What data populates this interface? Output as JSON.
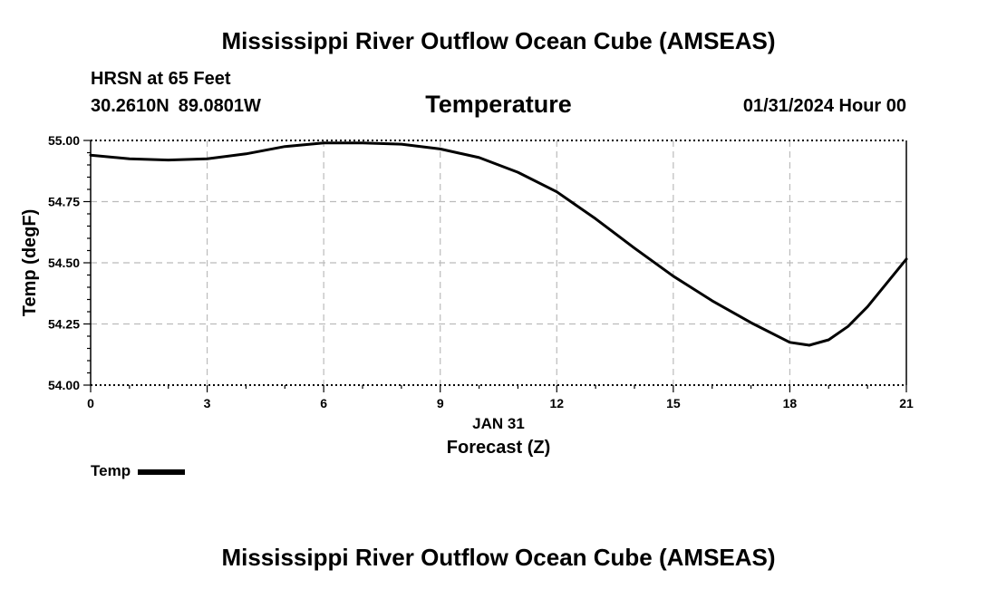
{
  "header": {
    "title": "Mississippi River Outflow Ocean Cube (AMSEAS)",
    "station": "HRSN at 65 Feet",
    "lat": "30.2610N",
    "lon": "89.0801W",
    "panel_title": "Temperature",
    "datetime": "01/31/2024 Hour 00"
  },
  "footer": {
    "title": "Mississippi River Outflow Ocean Cube (AMSEAS)"
  },
  "chart_data": {
    "type": "line",
    "title": "Temperature",
    "xlabel": "Forecast (Z)",
    "date_label": "JAN 31",
    "ylabel": "Temp (degF)",
    "xlim": [
      0,
      21
    ],
    "ylim": [
      54.0,
      55.0
    ],
    "x_ticks": [
      0,
      3,
      6,
      9,
      12,
      15,
      18,
      21
    ],
    "y_ticks": [
      "54.00",
      "54.25",
      "54.50",
      "54.75",
      "55.00"
    ],
    "grid": true,
    "legend_position": "bottom-left",
    "series": [
      {
        "name": "Temp",
        "color": "#000000",
        "x": [
          0,
          1,
          2,
          3,
          4,
          5,
          6,
          7,
          8,
          9,
          10,
          11,
          12,
          13,
          14,
          15,
          16,
          17,
          18,
          18.5,
          19,
          19.5,
          20,
          21
        ],
        "y": [
          54.94,
          54.925,
          54.92,
          54.925,
          54.945,
          54.975,
          54.99,
          54.99,
          54.985,
          54.965,
          54.93,
          54.87,
          54.79,
          54.68,
          54.56,
          54.445,
          54.345,
          54.255,
          54.175,
          54.163,
          54.185,
          54.24,
          54.32,
          54.515
        ]
      }
    ]
  }
}
